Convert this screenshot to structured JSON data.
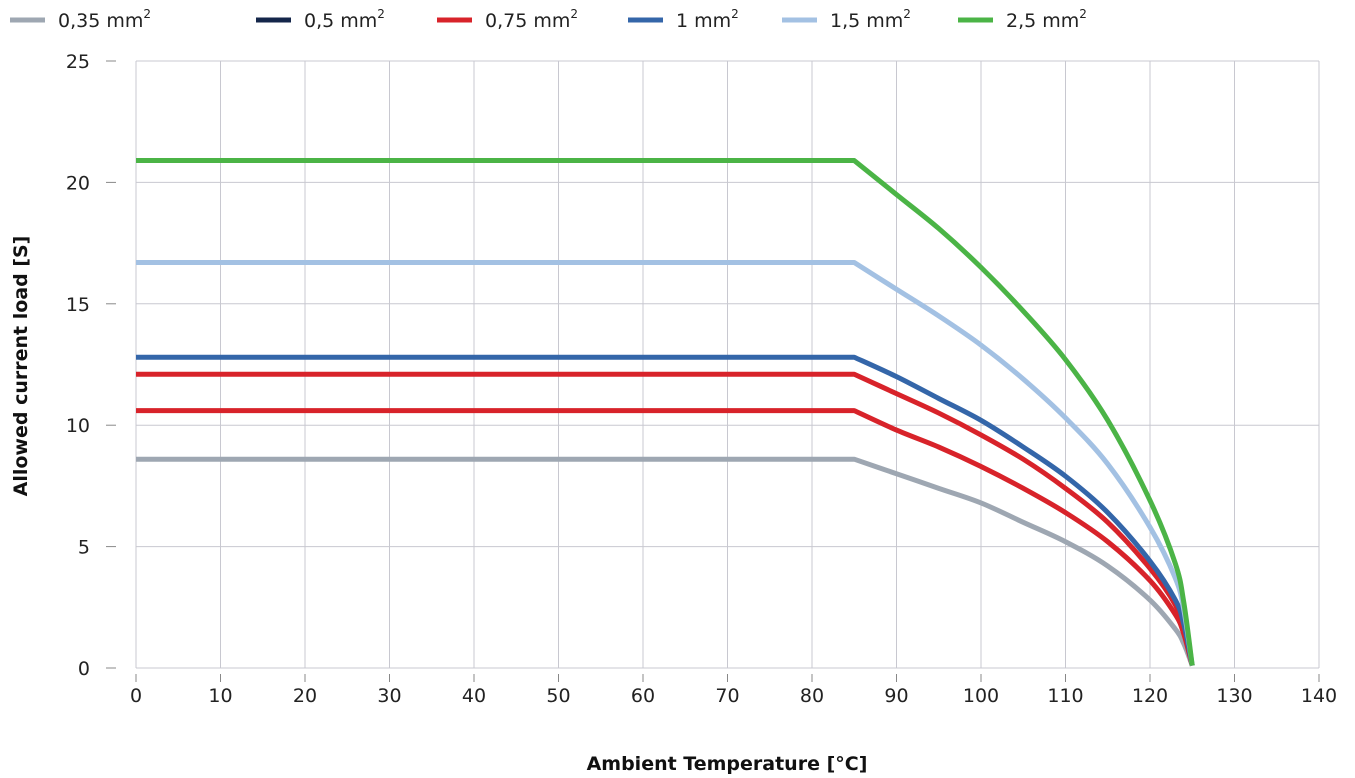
{
  "chart_data": {
    "type": "line",
    "title": "",
    "xlabel": "Ambient Temperature [°C]",
    "ylabel": "Allowed current load [S]",
    "xlim": [
      0,
      140
    ],
    "ylim": [
      0,
      25
    ],
    "xticks": [
      0,
      10,
      20,
      30,
      40,
      50,
      60,
      70,
      80,
      90,
      100,
      110,
      120,
      130,
      140
    ],
    "yticks": [
      0,
      5,
      10,
      15,
      20,
      25
    ],
    "xtick_labels": [
      "0",
      "10",
      "20",
      "30",
      "40",
      "50",
      "60",
      "70",
      "80",
      "90",
      "100",
      "110",
      "120",
      "130",
      "140"
    ],
    "ytick_labels": [
      "0",
      "5",
      "10",
      "15",
      "20",
      "25"
    ],
    "grid": true,
    "legend_position": "top",
    "series": [
      {
        "name": "0,35 mm",
        "name_sup": "2",
        "color": "#9ea7b2",
        "x": [
          0,
          85,
          90,
          95,
          100,
          105,
          110,
          115,
          120,
          123,
          124,
          125
        ],
        "y": [
          8.6,
          8.6,
          8.0,
          7.4,
          6.8,
          6.0,
          5.2,
          4.2,
          2.8,
          1.6,
          1.0,
          0.1
        ]
      },
      {
        "name": "0,5 mm",
        "name_sup": "2",
        "color": "#14264a",
        "x": [],
        "y": []
      },
      {
        "name": "0,75 mm",
        "name_sup": "2",
        "color": "#d8232a",
        "x": [
          0,
          85,
          90,
          95,
          100,
          105,
          110,
          115,
          120,
          123,
          124,
          125
        ],
        "y": [
          10.6,
          10.6,
          9.8,
          9.1,
          8.3,
          7.4,
          6.4,
          5.2,
          3.6,
          2.2,
          1.4,
          0.1
        ]
      },
      {
        "name": "0,75 mm",
        "name_sup": "2",
        "color": "#d8232a",
        "x": [
          0,
          85,
          90,
          95,
          100,
          105,
          110,
          115,
          120,
          123,
          124,
          125
        ],
        "y": [
          12.1,
          12.1,
          11.3,
          10.5,
          9.6,
          8.6,
          7.4,
          6.0,
          4.1,
          2.6,
          1.6,
          0.1
        ]
      },
      {
        "name": "1 mm",
        "name_sup": "2",
        "color": "#3466a9",
        "x": [
          0,
          85,
          90,
          95,
          100,
          105,
          110,
          115,
          120,
          123,
          124,
          125
        ],
        "y": [
          12.8,
          12.8,
          12.0,
          11.1,
          10.2,
          9.1,
          7.9,
          6.4,
          4.4,
          2.8,
          1.8,
          0.1
        ]
      },
      {
        "name": "1,5 mm",
        "name_sup": "2",
        "color": "#a3c1e3",
        "x": [
          0,
          85,
          90,
          95,
          100,
          105,
          110,
          115,
          120,
          123,
          124,
          125
        ],
        "y": [
          16.7,
          16.7,
          15.6,
          14.5,
          13.3,
          11.9,
          10.3,
          8.4,
          5.8,
          3.7,
          2.4,
          0.1
        ]
      },
      {
        "name": "2,5 mm",
        "name_sup": "2",
        "color": "#4bb446",
        "x": [
          0,
          85,
          90,
          95,
          100,
          105,
          110,
          115,
          120,
          123,
          124,
          125
        ],
        "y": [
          20.9,
          20.9,
          19.5,
          18.1,
          16.5,
          14.7,
          12.7,
          10.2,
          6.9,
          4.3,
          2.7,
          0.1
        ]
      }
    ],
    "legend": [
      0,
      1,
      2,
      4,
      5,
      6
    ]
  }
}
